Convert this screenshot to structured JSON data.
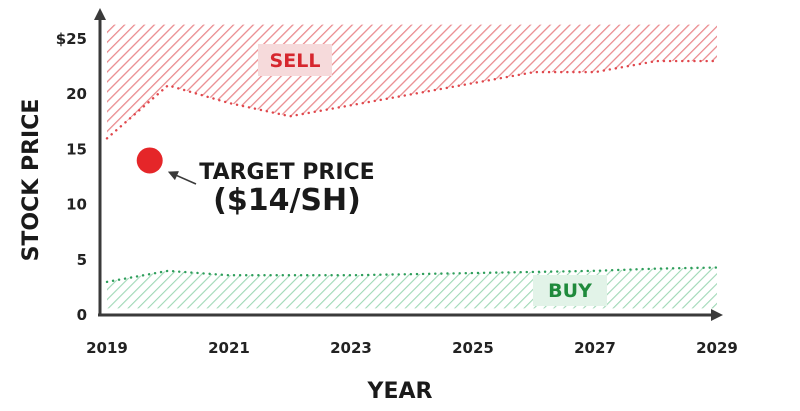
{
  "chart_data": {
    "type": "area",
    "xlabel": "YEAR",
    "ylabel": "STOCK PRICE",
    "x_ticks": [
      "2019",
      "2021",
      "2023",
      "2025",
      "2027",
      "2029"
    ],
    "y_ticks": [
      "0",
      "5",
      "10",
      "15",
      "20",
      "$25"
    ],
    "xlim": [
      2019,
      2029
    ],
    "ylim": [
      0,
      25
    ],
    "colors": {
      "sell": "#e0474c",
      "buy": "#2e9e5b",
      "sell_label": "#d6262e",
      "buy_label": "#1f8a3c",
      "target": "#e52629",
      "axis": "#3a3a3a"
    },
    "series": [
      {
        "name": "SELL",
        "x": [
          2019,
          2020,
          2021,
          2022,
          2023,
          2024,
          2025,
          2026,
          2027,
          2028,
          2029
        ],
        "values": [
          16,
          20.8,
          19.2,
          18,
          19,
          20,
          21,
          22,
          22,
          23,
          23
        ]
      },
      {
        "name": "BUY",
        "x": [
          2019,
          2020,
          2021,
          2022,
          2023,
          2024,
          2025,
          2026,
          2027,
          2028,
          2029
        ],
        "values": [
          3,
          4,
          3.6,
          3.6,
          3.6,
          3.7,
          3.8,
          3.9,
          4,
          4.2,
          4.3
        ]
      }
    ],
    "band_limits": {
      "sell_top": 26.3,
      "buy_bottom": 0.6
    },
    "target": {
      "x": 2019.7,
      "y": 14,
      "label_line1": "TARGET PRICE",
      "label_line2": "($14/SH)"
    }
  }
}
